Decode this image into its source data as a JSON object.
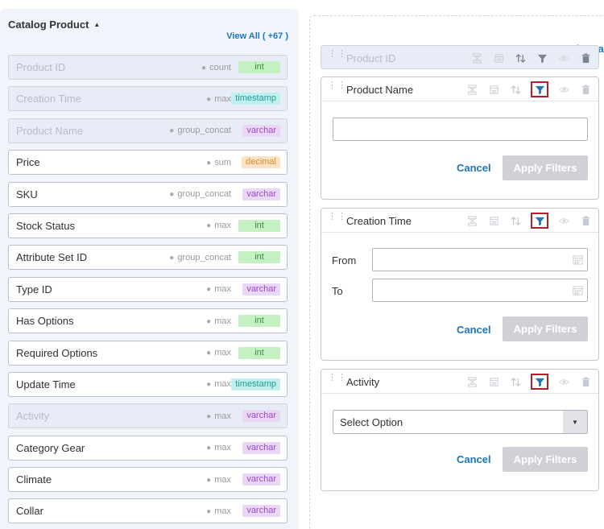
{
  "left": {
    "title": "Catalog Product",
    "view_all": "View All ( +67 )",
    "fields": [
      {
        "name": "Product ID",
        "agg": "count",
        "type": "int",
        "used": true
      },
      {
        "name": "Creation Time",
        "agg": "max",
        "type": "timestamp",
        "used": true
      },
      {
        "name": "Product Name",
        "agg": "group_concat",
        "type": "varchar",
        "used": true
      },
      {
        "name": "Price",
        "agg": "sum",
        "type": "decimal",
        "used": false
      },
      {
        "name": "SKU",
        "agg": "group_concat",
        "type": "varchar",
        "used": false
      },
      {
        "name": "Stock Status",
        "agg": "max",
        "type": "int",
        "used": false
      },
      {
        "name": "Attribute Set ID",
        "agg": "group_concat",
        "type": "int",
        "used": false
      },
      {
        "name": "Type ID",
        "agg": "max",
        "type": "varchar",
        "used": false
      },
      {
        "name": "Has Options",
        "agg": "max",
        "type": "int",
        "used": false
      },
      {
        "name": "Required Options",
        "agg": "max",
        "type": "int",
        "used": false
      },
      {
        "name": "Update Time",
        "agg": "max",
        "type": "timestamp",
        "used": false
      },
      {
        "name": "Activity",
        "agg": "max",
        "type": "varchar",
        "used": true
      },
      {
        "name": "Category Gear",
        "agg": "max",
        "type": "varchar",
        "used": false
      },
      {
        "name": "Climate",
        "agg": "max",
        "type": "varchar",
        "used": false
      },
      {
        "name": "Collar",
        "agg": "max",
        "type": "varchar",
        "used": false
      }
    ]
  },
  "right": {
    "clear_all": "Clear all",
    "product_id": {
      "title": "Product ID"
    },
    "product_name": {
      "title": "Product Name",
      "value": "",
      "cancel": "Cancel",
      "apply": "Apply Filters"
    },
    "creation_time": {
      "title": "Creation Time",
      "from_label": "From",
      "to_label": "To",
      "from_value": "",
      "to_value": "",
      "cancel": "Cancel",
      "apply": "Apply Filters"
    },
    "activity": {
      "title": "Activity",
      "select_value": "Select Option",
      "cancel": "Cancel",
      "apply": "Apply Filters"
    }
  },
  "colors": {
    "accent": "#1f74bb",
    "active_outline": "#b41f28",
    "filter_active": "#1f74bb"
  },
  "icons": [
    "drag-handle-icon",
    "group-icon",
    "calendar-icon",
    "sort-icon",
    "filter-icon",
    "eye-icon",
    "trash-icon",
    "chevron-down-icon"
  ]
}
